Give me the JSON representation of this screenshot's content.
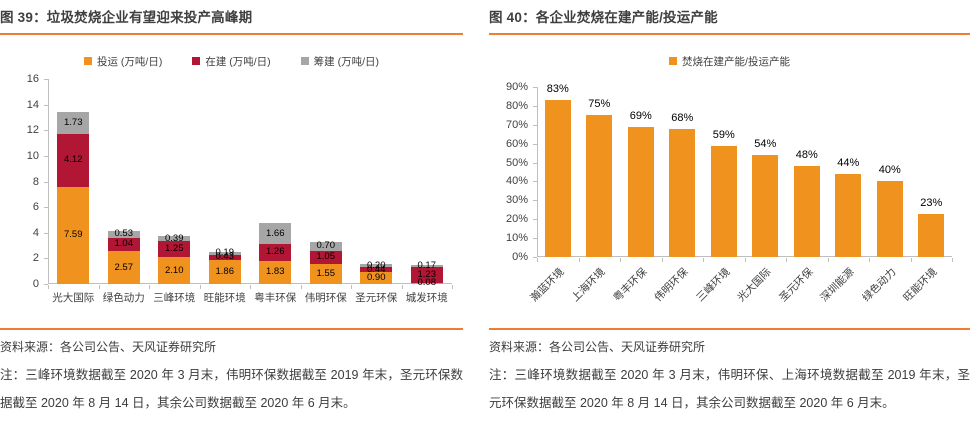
{
  "accent_orange": "#ED7D31",
  "panels": {
    "left": {
      "title": "图 39：垃圾焚烧企业有望迎来投产高峰期",
      "source": "资料来源：各公司公告、天风证券研究所",
      "note": "注：三峰环境数据截至 2020 年 3 月末，伟明环保数据截至 2019 年末，圣元环保数据截至 2020 年 8 月 14 日，其余公司数据截至 2020 年 6 月末。"
    },
    "right": {
      "title": "图 40：各企业焚烧在建产能/投运产能",
      "source": "资料来源：各公司公告、天风证券研究所",
      "note": "注：三峰环境数据截至 2020 年 3 月末，伟明环保、上海环境数据截至 2019 年末，圣元环保数据截至 2020 年 8 月 14 日，其余公司数据截至 2020 年 6 月末。"
    }
  },
  "chart_data": [
    {
      "id": "fig39",
      "type": "bar",
      "stacked": true,
      "title": "图 39：垃圾焚烧企业有望迎来投产高峰期",
      "categories": [
        "光大国际",
        "绿色动力",
        "三峰环境",
        "旺能环境",
        "粤丰环保",
        "伟明环保",
        "圣元环保",
        "城发环境"
      ],
      "series": [
        {
          "name": "投运 (万吨/日)",
          "color": "#F0921E",
          "values": [
            7.59,
            2.57,
            2.1,
            1.86,
            1.83,
            1.55,
            0.9,
            0.08
          ],
          "labels": [
            "7.59",
            "2.57",
            "2.10",
            "1.86",
            "1.83",
            "1.55",
            "0.90",
            "0.08"
          ]
        },
        {
          "name": "在建 (万吨/日)",
          "color": "#B11635",
          "values": [
            4.12,
            1.04,
            1.25,
            0.43,
            1.26,
            1.05,
            0.44,
            1.23
          ],
          "labels": [
            "4.12",
            "1.04",
            "1.25",
            "0.43",
            "1.26",
            "1.05",
            "0.44",
            "1.23"
          ]
        },
        {
          "name": "筹建 (万吨/日)",
          "color": "#A6A6A6",
          "values": [
            1.73,
            0.53,
            0.39,
            0.19,
            1.66,
            0.7,
            0.2,
            0.17
          ],
          "labels": [
            "1.73",
            "0.53",
            "0.39",
            "0.19",
            "1.66",
            "0.70",
            "0.20",
            "0.17"
          ]
        }
      ],
      "xlabel": "",
      "ylabel": "",
      "ylim": [
        0,
        16
      ],
      "yticks": [
        "0",
        "2",
        "4",
        "6",
        "8",
        "10",
        "12",
        "14",
        "16"
      ],
      "legend_position": "top",
      "grid": false
    },
    {
      "id": "fig40",
      "type": "bar",
      "stacked": false,
      "title": "图 40：各企业焚烧在建产能/投运产能",
      "categories": [
        "瀚蓝环境",
        "上海环境",
        "粤丰环保",
        "伟明环保",
        "三峰环境",
        "光大国际",
        "圣元环保",
        "深圳能源",
        "绿色动力",
        "旺能环境"
      ],
      "series": [
        {
          "name": "焚烧在建产能/投运产能",
          "color": "#F0921E",
          "values": [
            83,
            75,
            69,
            68,
            59,
            54,
            48,
            44,
            40,
            23
          ],
          "labels": [
            "83%",
            "75%",
            "69%",
            "68%",
            "59%",
            "54%",
            "48%",
            "44%",
            "40%",
            "23%"
          ]
        }
      ],
      "xlabel": "",
      "ylabel": "",
      "ylim": [
        0,
        90
      ],
      "yticks": [
        "0%",
        "10%",
        "20%",
        "30%",
        "40%",
        "50%",
        "60%",
        "70%",
        "80%",
        "90%"
      ],
      "legend_position": "top",
      "grid": false,
      "xlabel_rotation": -45
    }
  ]
}
